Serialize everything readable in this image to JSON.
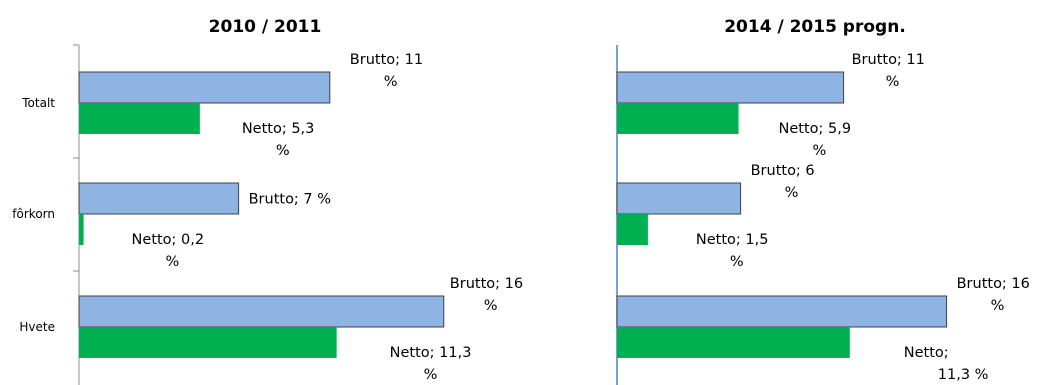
{
  "chart_data": [
    {
      "type": "bar",
      "orientation": "horizontal",
      "title": "2010 / 2011",
      "categories": [
        "Totalt",
        "fôrkorn",
        "Hvete"
      ],
      "series": [
        {
          "name": "Brutto",
          "color": "#8EB4E3",
          "values": [
            11,
            7,
            16
          ],
          "labels": [
            [
              "Brutto; 11",
              "%"
            ],
            [
              "Brutto; 7 %"
            ],
            [
              "Brutto; 16",
              "%"
            ]
          ]
        },
        {
          "name": "Netto",
          "color": "#00B050",
          "values": [
            5.3,
            0.2,
            11.3
          ],
          "labels": [
            [
              "Netto; 5,3",
              "%"
            ],
            [
              "Netto; 0,2",
              "%"
            ],
            [
              "Netto; 11,3",
              "%"
            ]
          ]
        }
      ],
      "xlim": [
        0,
        17.5
      ]
    },
    {
      "type": "bar",
      "orientation": "horizontal",
      "title": "2014 / 2015 progn.",
      "categories": [
        "Totalt",
        "fôrkorn",
        "Hvete"
      ],
      "series": [
        {
          "name": "Brutto",
          "color": "#8EB4E3",
          "values": [
            11,
            6,
            16
          ],
          "labels": [
            [
              "Brutto; 11",
              "%"
            ],
            [
              "Brutto; 6",
              "%"
            ],
            [
              "Brutto; 16",
              "%"
            ]
          ]
        },
        {
          "name": "Netto",
          "color": "#00B050",
          "values": [
            5.9,
            1.5,
            11.3
          ],
          "labels": [
            [
              "Netto; 5,9",
              "%"
            ],
            [
              "Netto; 1,5",
              "%"
            ],
            [
              "Netto;",
              "11,3 %"
            ]
          ]
        }
      ],
      "xlim": [
        0,
        17.5
      ]
    }
  ]
}
